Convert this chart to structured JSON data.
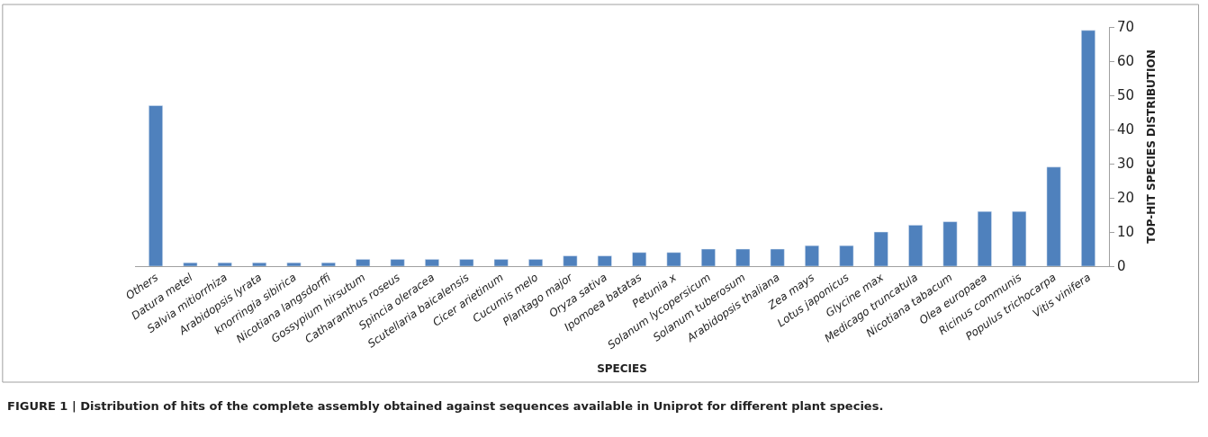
{
  "chart_data": {
    "type": "bar",
    "categories": [
      "Others",
      "Datura metel",
      "Salvia mitiorrhiza",
      "Arabidopsis lyrata",
      "knorringia sibirica",
      "Nicotiana langsdorffi",
      "Gossypium hirsutum",
      "Catharanthus roseus",
      "Spincia oleracea",
      "Scutellaria baicalensis",
      "Cicer arietinum",
      "Cucumis melo",
      "Plantago major",
      "Oryza sativa",
      "Ipomoea batatas",
      "Petunia x",
      "Solanum lycopersicum",
      "Solanum tuberosum",
      "Arabidopsis thaliana",
      "Zea mays",
      "Lotus japonicus",
      "Glycine max",
      "Medicago truncatula",
      "Nicotiana tabacum",
      "Olea europaea",
      "Ricinus communis",
      "Populus trichocarpa",
      "Vitis vinifera"
    ],
    "values": [
      47,
      1,
      1,
      1,
      1,
      1,
      2,
      2,
      2,
      2,
      2,
      2,
      3,
      3,
      4,
      4,
      5,
      5,
      5,
      6,
      6,
      10,
      12,
      13,
      16,
      16,
      29,
      69
    ],
    "color": "#4f81bd",
    "xlabel": "SPECIES",
    "ylabel": "TOP-HIT SPECIES DISTRIBUTION",
    "ylim": [
      0,
      70
    ],
    "yticks": [
      0,
      10,
      20,
      30,
      40,
      50,
      60,
      70
    ],
    "annotations": [
      "FIGURE 1 | Distribution of hits of the complete assembly obtained against sequences available in Uniprot for different plant species."
    ]
  }
}
